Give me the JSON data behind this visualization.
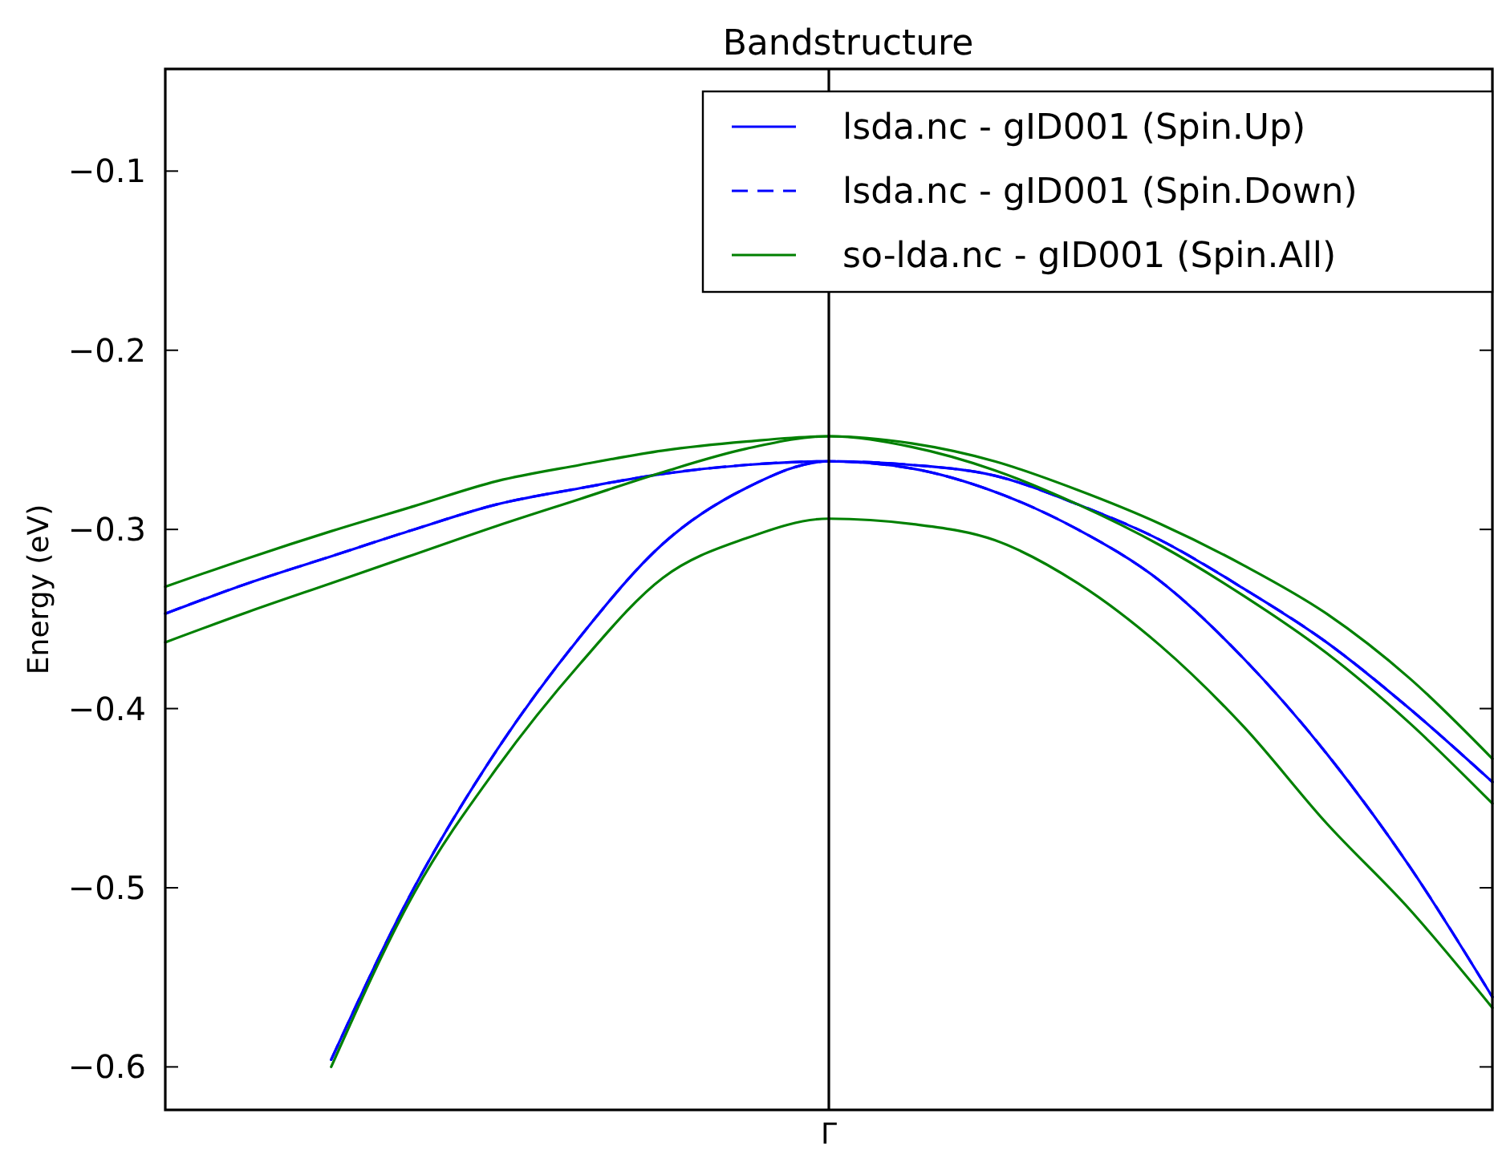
{
  "chart_data": {
    "type": "line",
    "title": "Bandstructure",
    "ylabel": "Energy (eV)",
    "categories": [
      null,
      null,
      null,
      null,
      null,
      null,
      null,
      null,
      "Γ",
      null,
      null,
      null,
      null,
      null,
      null,
      null,
      null
    ],
    "ylim": [
      -0.624,
      -0.043
    ],
    "yticks": [
      {
        "value": -0.1,
        "label": "−0.1"
      },
      {
        "value": -0.2,
        "label": "−0.2"
      },
      {
        "value": -0.3,
        "label": "−0.3"
      },
      {
        "value": -0.4,
        "label": "−0.4"
      },
      {
        "value": -0.5,
        "label": "−0.5"
      },
      {
        "value": -0.6,
        "label": "−0.6"
      }
    ],
    "ref_lines": [
      {
        "axis": "x",
        "value": "Γ",
        "color": "#000000"
      }
    ],
    "legend": "top right",
    "grid": false,
    "series": [
      {
        "name": "lsda.nc - gID001 (Spin.Up)",
        "color": "#0000ff",
        "line_style": "solid",
        "values": [
          -0.347,
          -0.33,
          -0.315,
          -0.3,
          -0.286,
          -0.277,
          -0.269,
          -0.264,
          -0.262,
          -0.264,
          -0.27,
          -0.286,
          -0.306,
          -0.333,
          -0.363,
          -0.4,
          -0.441
        ]
      },
      {
        "color": "#0000ff",
        "line_style": "solid",
        "values": [
          null,
          null,
          -0.596,
          -0.5,
          -0.423,
          -0.36,
          -0.308,
          -0.277,
          -0.262,
          -0.266,
          -0.279,
          -0.3,
          -0.329,
          -0.372,
          -0.425,
          -0.488,
          -0.561
        ]
      },
      {
        "name": "lsda.nc - gID001 (Spin.Down)",
        "color": "#0000ff",
        "line_style": "dashed",
        "values": [
          -0.347,
          -0.33,
          -0.315,
          -0.3,
          -0.286,
          -0.277,
          -0.269,
          -0.264,
          -0.262,
          -0.264,
          -0.27,
          -0.286,
          -0.306,
          -0.333,
          -0.363,
          -0.4,
          -0.441
        ]
      },
      {
        "color": "#0000ff",
        "line_style": "dashed",
        "values": [
          null,
          null,
          -0.596,
          -0.5,
          -0.423,
          -0.36,
          -0.308,
          -0.277,
          -0.262,
          -0.266,
          -0.279,
          -0.3,
          -0.329,
          -0.372,
          -0.425,
          -0.488,
          -0.561
        ]
      },
      {
        "name": "so-lda.nc - gID001 (Spin.All)",
        "color": "#008000",
        "line_style": "solid",
        "values": [
          -0.332,
          -0.316,
          -0.301,
          -0.287,
          -0.273,
          -0.264,
          -0.256,
          -0.251,
          -0.248,
          -0.252,
          -0.262,
          -0.278,
          -0.297,
          -0.32,
          -0.347,
          -0.383,
          -0.428
        ]
      },
      {
        "color": "#008000",
        "line_style": "solid",
        "values": [
          -0.363,
          -0.346,
          -0.33,
          -0.314,
          -0.298,
          -0.283,
          -0.268,
          -0.255,
          -0.248,
          -0.254,
          -0.267,
          -0.286,
          -0.309,
          -0.337,
          -0.369,
          -0.408,
          -0.453
        ]
      },
      {
        "color": "#008000",
        "line_style": "solid",
        "values": [
          null,
          null,
          -0.6,
          -0.503,
          -0.433,
          -0.375,
          -0.327,
          -0.305,
          -0.294,
          -0.297,
          -0.306,
          -0.33,
          -0.365,
          -0.41,
          -0.464,
          -0.512,
          -0.567
        ]
      }
    ]
  }
}
